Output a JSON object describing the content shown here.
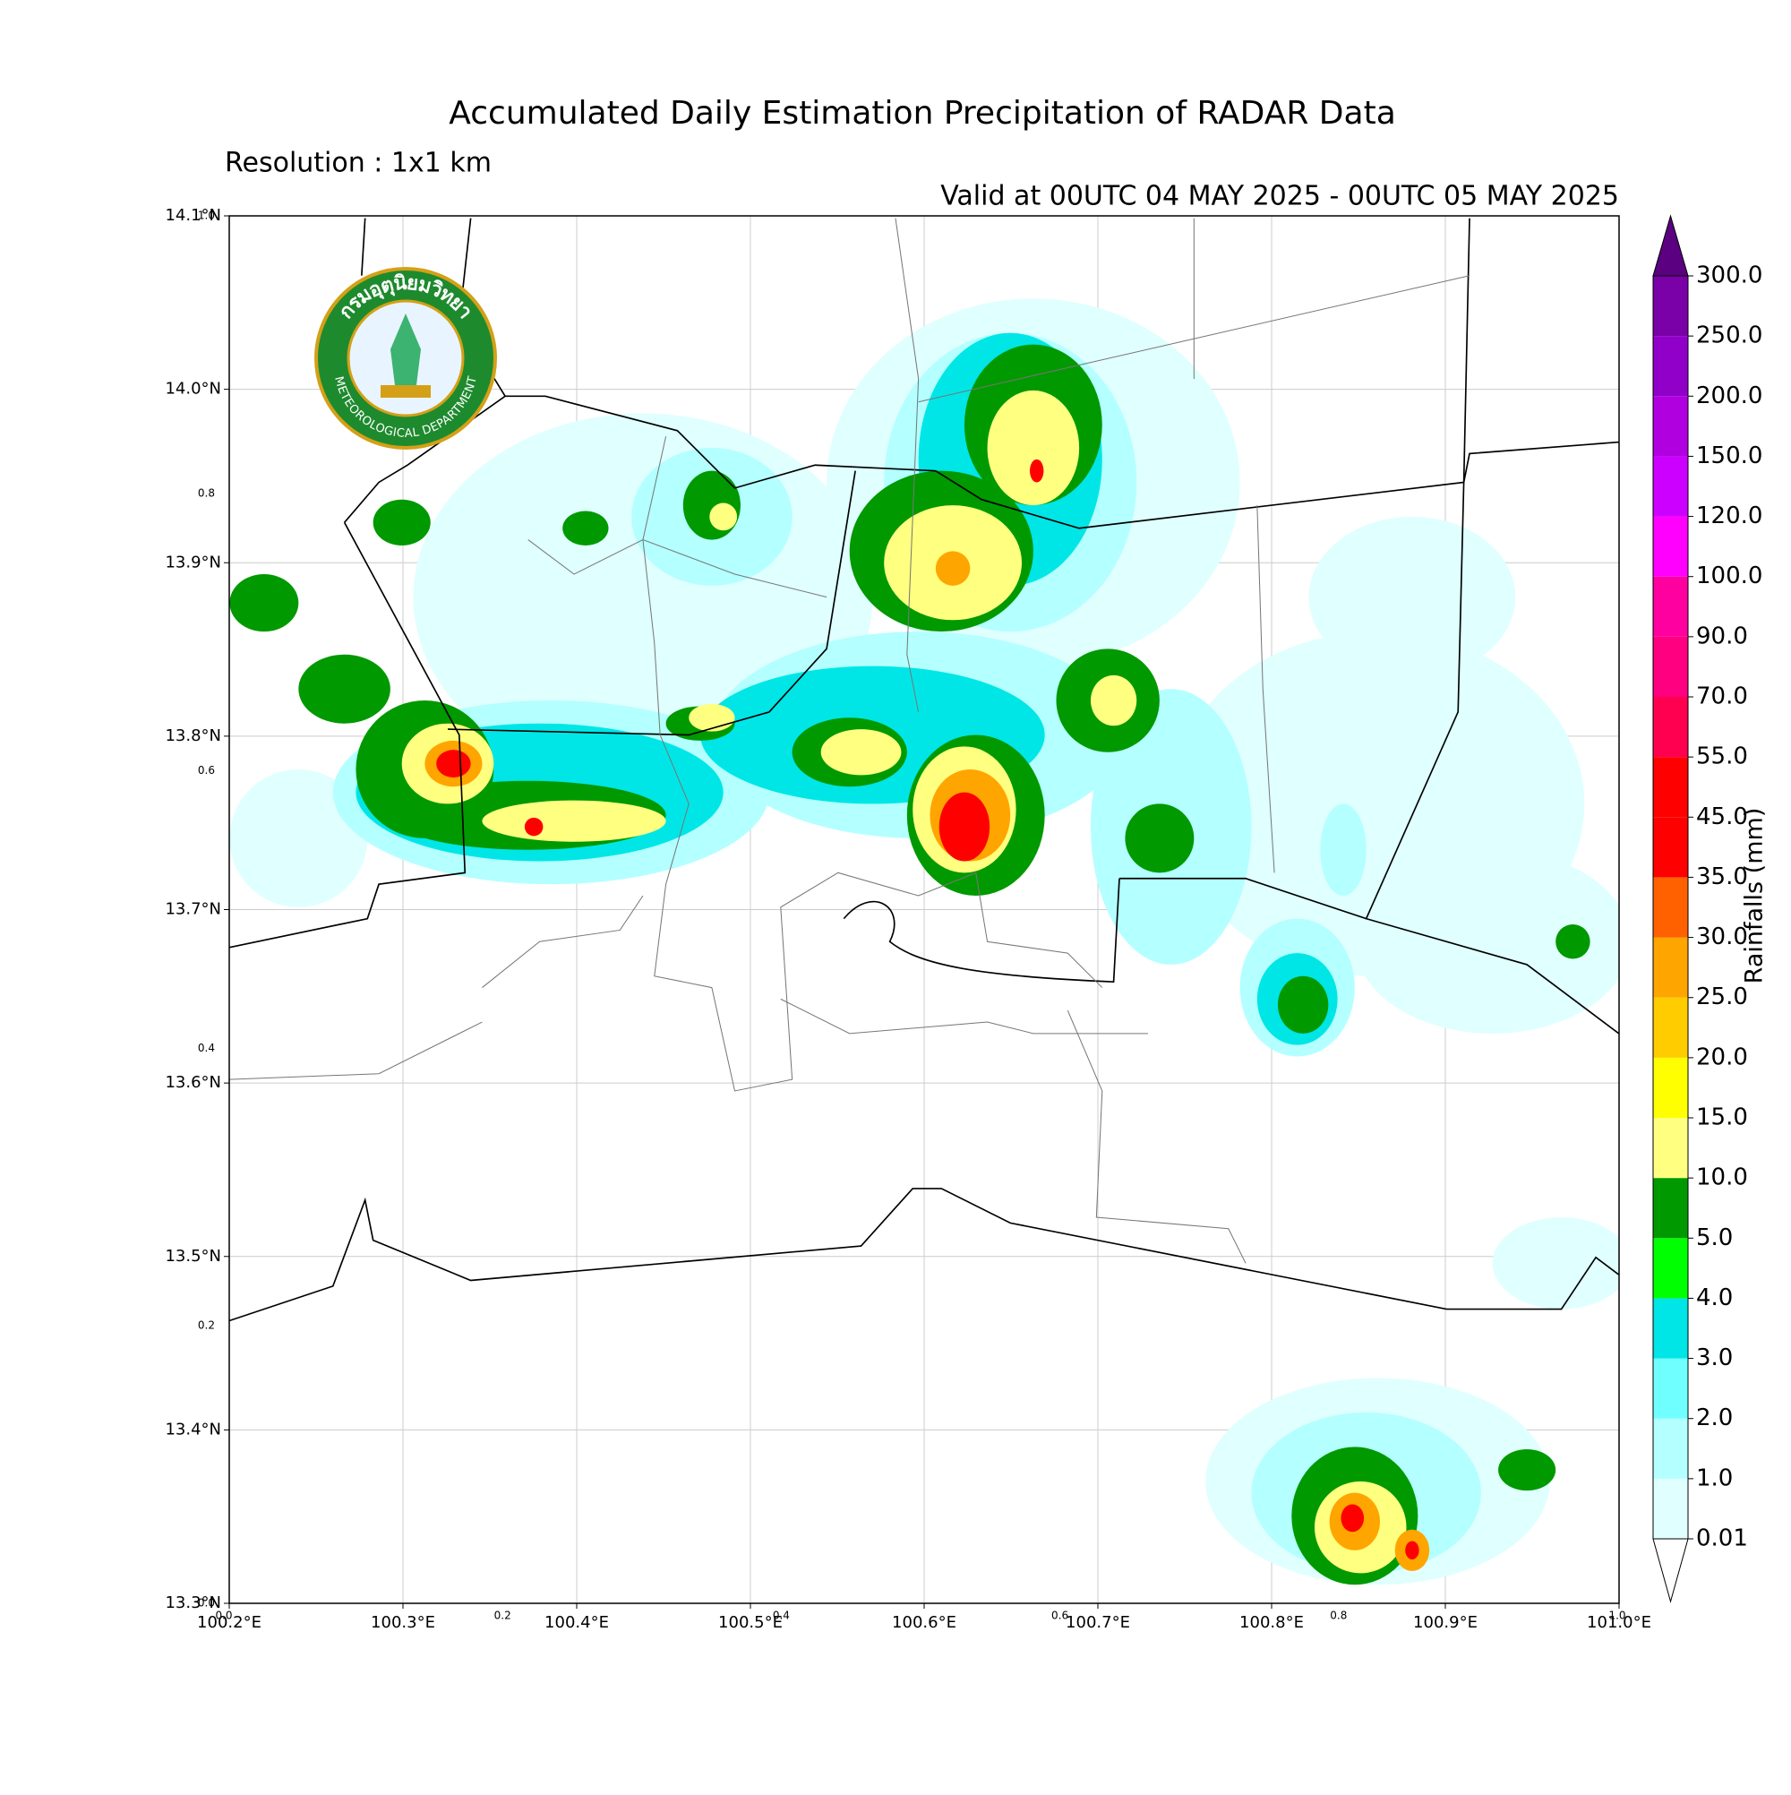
{
  "header": {
    "title": "Accumulated Daily Estimation Precipitation of RADAR Data",
    "resolution": "Resolution : 1x1 km",
    "valid": "Valid at 00UTC 04 MAY 2025 - 00UTC 05 MAY 2025"
  },
  "map": {
    "xlim": [
      100.2,
      101.0
    ],
    "ylim": [
      13.3,
      14.1
    ],
    "xticks": [
      {
        "value": 100.2,
        "label": "100.2°E"
      },
      {
        "value": 100.3,
        "label": "100.3°E"
      },
      {
        "value": 100.4,
        "label": "100.4°E"
      },
      {
        "value": 100.5,
        "label": "100.5°E"
      },
      {
        "value": 100.6,
        "label": "100.6°E"
      },
      {
        "value": 100.7,
        "label": "100.7°E"
      },
      {
        "value": 100.8,
        "label": "100.8°E"
      },
      {
        "value": 100.9,
        "label": "100.9°E"
      },
      {
        "value": 101.0,
        "label": "101.0°E"
      }
    ],
    "yticks": [
      {
        "value": 13.3,
        "label": "13.3°N"
      },
      {
        "value": 13.4,
        "label": "13.4°N"
      },
      {
        "value": 13.5,
        "label": "13.5°N"
      },
      {
        "value": 13.6,
        "label": "13.6°N"
      },
      {
        "value": 13.7,
        "label": "13.7°N"
      },
      {
        "value": 13.8,
        "label": "13.8°N"
      },
      {
        "value": 13.9,
        "label": "13.9°N"
      },
      {
        "value": 14.0,
        "label": "14.0°N"
      },
      {
        "value": 14.1,
        "label": "14.1°N"
      }
    ],
    "grid": true
  },
  "inset_axis": {
    "xlim": [
      0,
      1
    ],
    "ylim": [
      0,
      1
    ],
    "xticks": [
      {
        "value": 0,
        "label": "0.0"
      },
      0.2,
      0.4,
      0.6,
      0.8,
      {
        "value": 1,
        "label": "1.0"
      }
    ],
    "yticks": [
      {
        "value": 0,
        "label": "0.0"
      },
      0.2,
      0.4,
      0.6,
      0.8,
      {
        "value": 1,
        "label": "1.0"
      }
    ]
  },
  "logo": {
    "thai": "กรมอุตุนิยมวิทยา",
    "english": "METEOROLOGICAL DEPARTMENT"
  },
  "colorbar": {
    "label": "Rainfalls (mm)",
    "levels": [
      0.01,
      {
        "value": 1,
        "label": "1.0"
      },
      {
        "value": 2,
        "label": "2.0"
      },
      {
        "value": 3,
        "label": "3.0"
      },
      {
        "value": 4,
        "label": "4.0"
      },
      {
        "value": 5,
        "label": "5.0"
      },
      {
        "value": 10,
        "label": "10.0"
      },
      {
        "value": 15,
        "label": "15.0"
      },
      {
        "value": 20,
        "label": "20.0"
      },
      {
        "value": 25,
        "label": "25.0"
      },
      {
        "value": 30,
        "label": "30.0"
      },
      {
        "value": 35,
        "label": "35.0"
      },
      {
        "value": 45,
        "label": "45.0"
      },
      {
        "value": 55,
        "label": "55.0"
      },
      {
        "value": 70,
        "label": "70.0"
      },
      {
        "value": 90,
        "label": "90.0"
      },
      {
        "value": 100,
        "label": "100.0"
      },
      {
        "value": 120,
        "label": "120.0"
      },
      {
        "value": 150,
        "label": "150.0"
      },
      {
        "value": 200,
        "label": "200.0"
      },
      {
        "value": 250,
        "label": "250.0"
      },
      {
        "value": 300,
        "label": "300.0"
      }
    ],
    "colors": [
      "#e0ffff",
      "#b4ffff",
      "#70ffff",
      "#00e6e6",
      "#00ff00",
      "#009900",
      "#ffff80",
      "#ffff00",
      "#ffcc00",
      "#ffa500",
      "#ff6000",
      "#ff0000",
      "#ff0000",
      "#ff0050",
      "#ff0080",
      "#ff00a0",
      "#ff00ff",
      "#cc00ff",
      "#b000e0",
      "#9000c8",
      "#7a00a8"
    ],
    "under_color": "#ffffff",
    "over_color": "#5a0080"
  }
}
